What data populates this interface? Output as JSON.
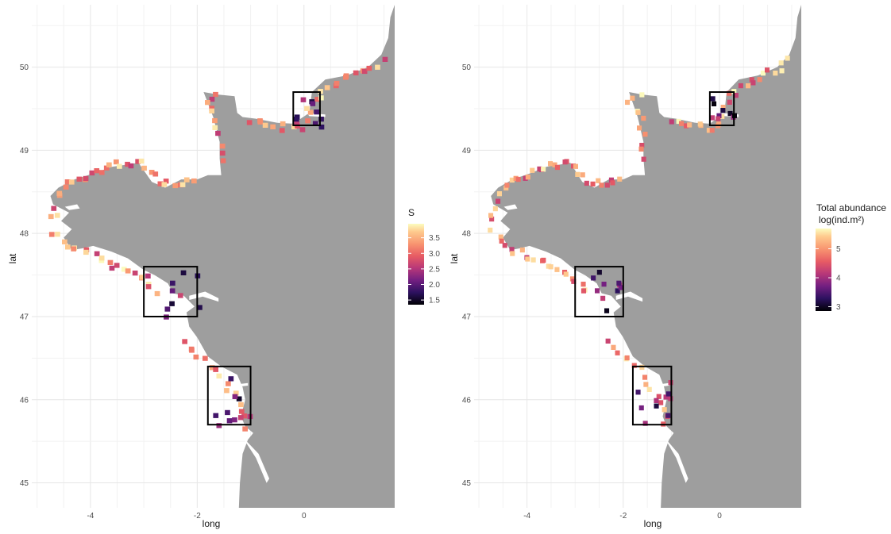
{
  "chart_data": [
    {
      "type": "map",
      "xlabel": "long",
      "ylabel": "lat",
      "x_ticks": [
        "-4",
        "-2",
        "0"
      ],
      "y_ticks": [
        "45",
        "46",
        "47",
        "48",
        "49",
        "50"
      ],
      "xlim": [
        -5.1,
        1.7
      ],
      "ylim": [
        44.7,
        50.75
      ],
      "grid": true,
      "land_color": "#9e9e9e",
      "legend": {
        "title": "S",
        "position": "right",
        "range": [
          1.35,
          3.95
        ],
        "ticks": [
          "1.5",
          "2.0",
          "2.5",
          "3.0",
          "3.5"
        ],
        "tick_values": [
          1.5,
          2.0,
          2.5,
          3.0,
          3.5
        ]
      },
      "highlight_boxes": [
        {
          "lon_min": -0.2,
          "lon_max": 0.3,
          "lat_min": 49.3,
          "lat_max": 49.7
        },
        {
          "lon_min": -3.0,
          "lon_max": -2.0,
          "lat_min": 47.0,
          "lat_max": 47.6
        },
        {
          "lon_min": -1.8,
          "lon_max": -1.0,
          "lat_min": 45.7,
          "lat_max": 46.4
        }
      ]
    },
    {
      "type": "map",
      "xlabel": "long",
      "ylabel": "lat",
      "x_ticks": [
        "-4",
        "-2",
        "0"
      ],
      "y_ticks": [
        "45",
        "46",
        "47",
        "48",
        "49",
        "50"
      ],
      "xlim": [
        -5.1,
        1.7
      ],
      "ylim": [
        44.7,
        50.75
      ],
      "grid": true,
      "land_color": "#9e9e9e",
      "legend": {
        "title_line1": "Total abundance",
        "title_line2": "log(ind.m²)",
        "position": "right",
        "range": [
          2.85,
          5.7
        ],
        "ticks": [
          "3",
          "4",
          "5"
        ],
        "tick_values": [
          3,
          4,
          5
        ]
      },
      "highlight_boxes": [
        {
          "lon_min": -0.2,
          "lon_max": 0.3,
          "lat_min": 49.3,
          "lat_max": 49.7
        },
        {
          "lon_min": -3.0,
          "lon_max": -2.0,
          "lat_min": 47.0,
          "lat_max": 47.6
        },
        {
          "lon_min": -1.8,
          "lon_max": -1.0,
          "lat_min": 45.7,
          "lat_max": 46.4
        }
      ]
    }
  ]
}
